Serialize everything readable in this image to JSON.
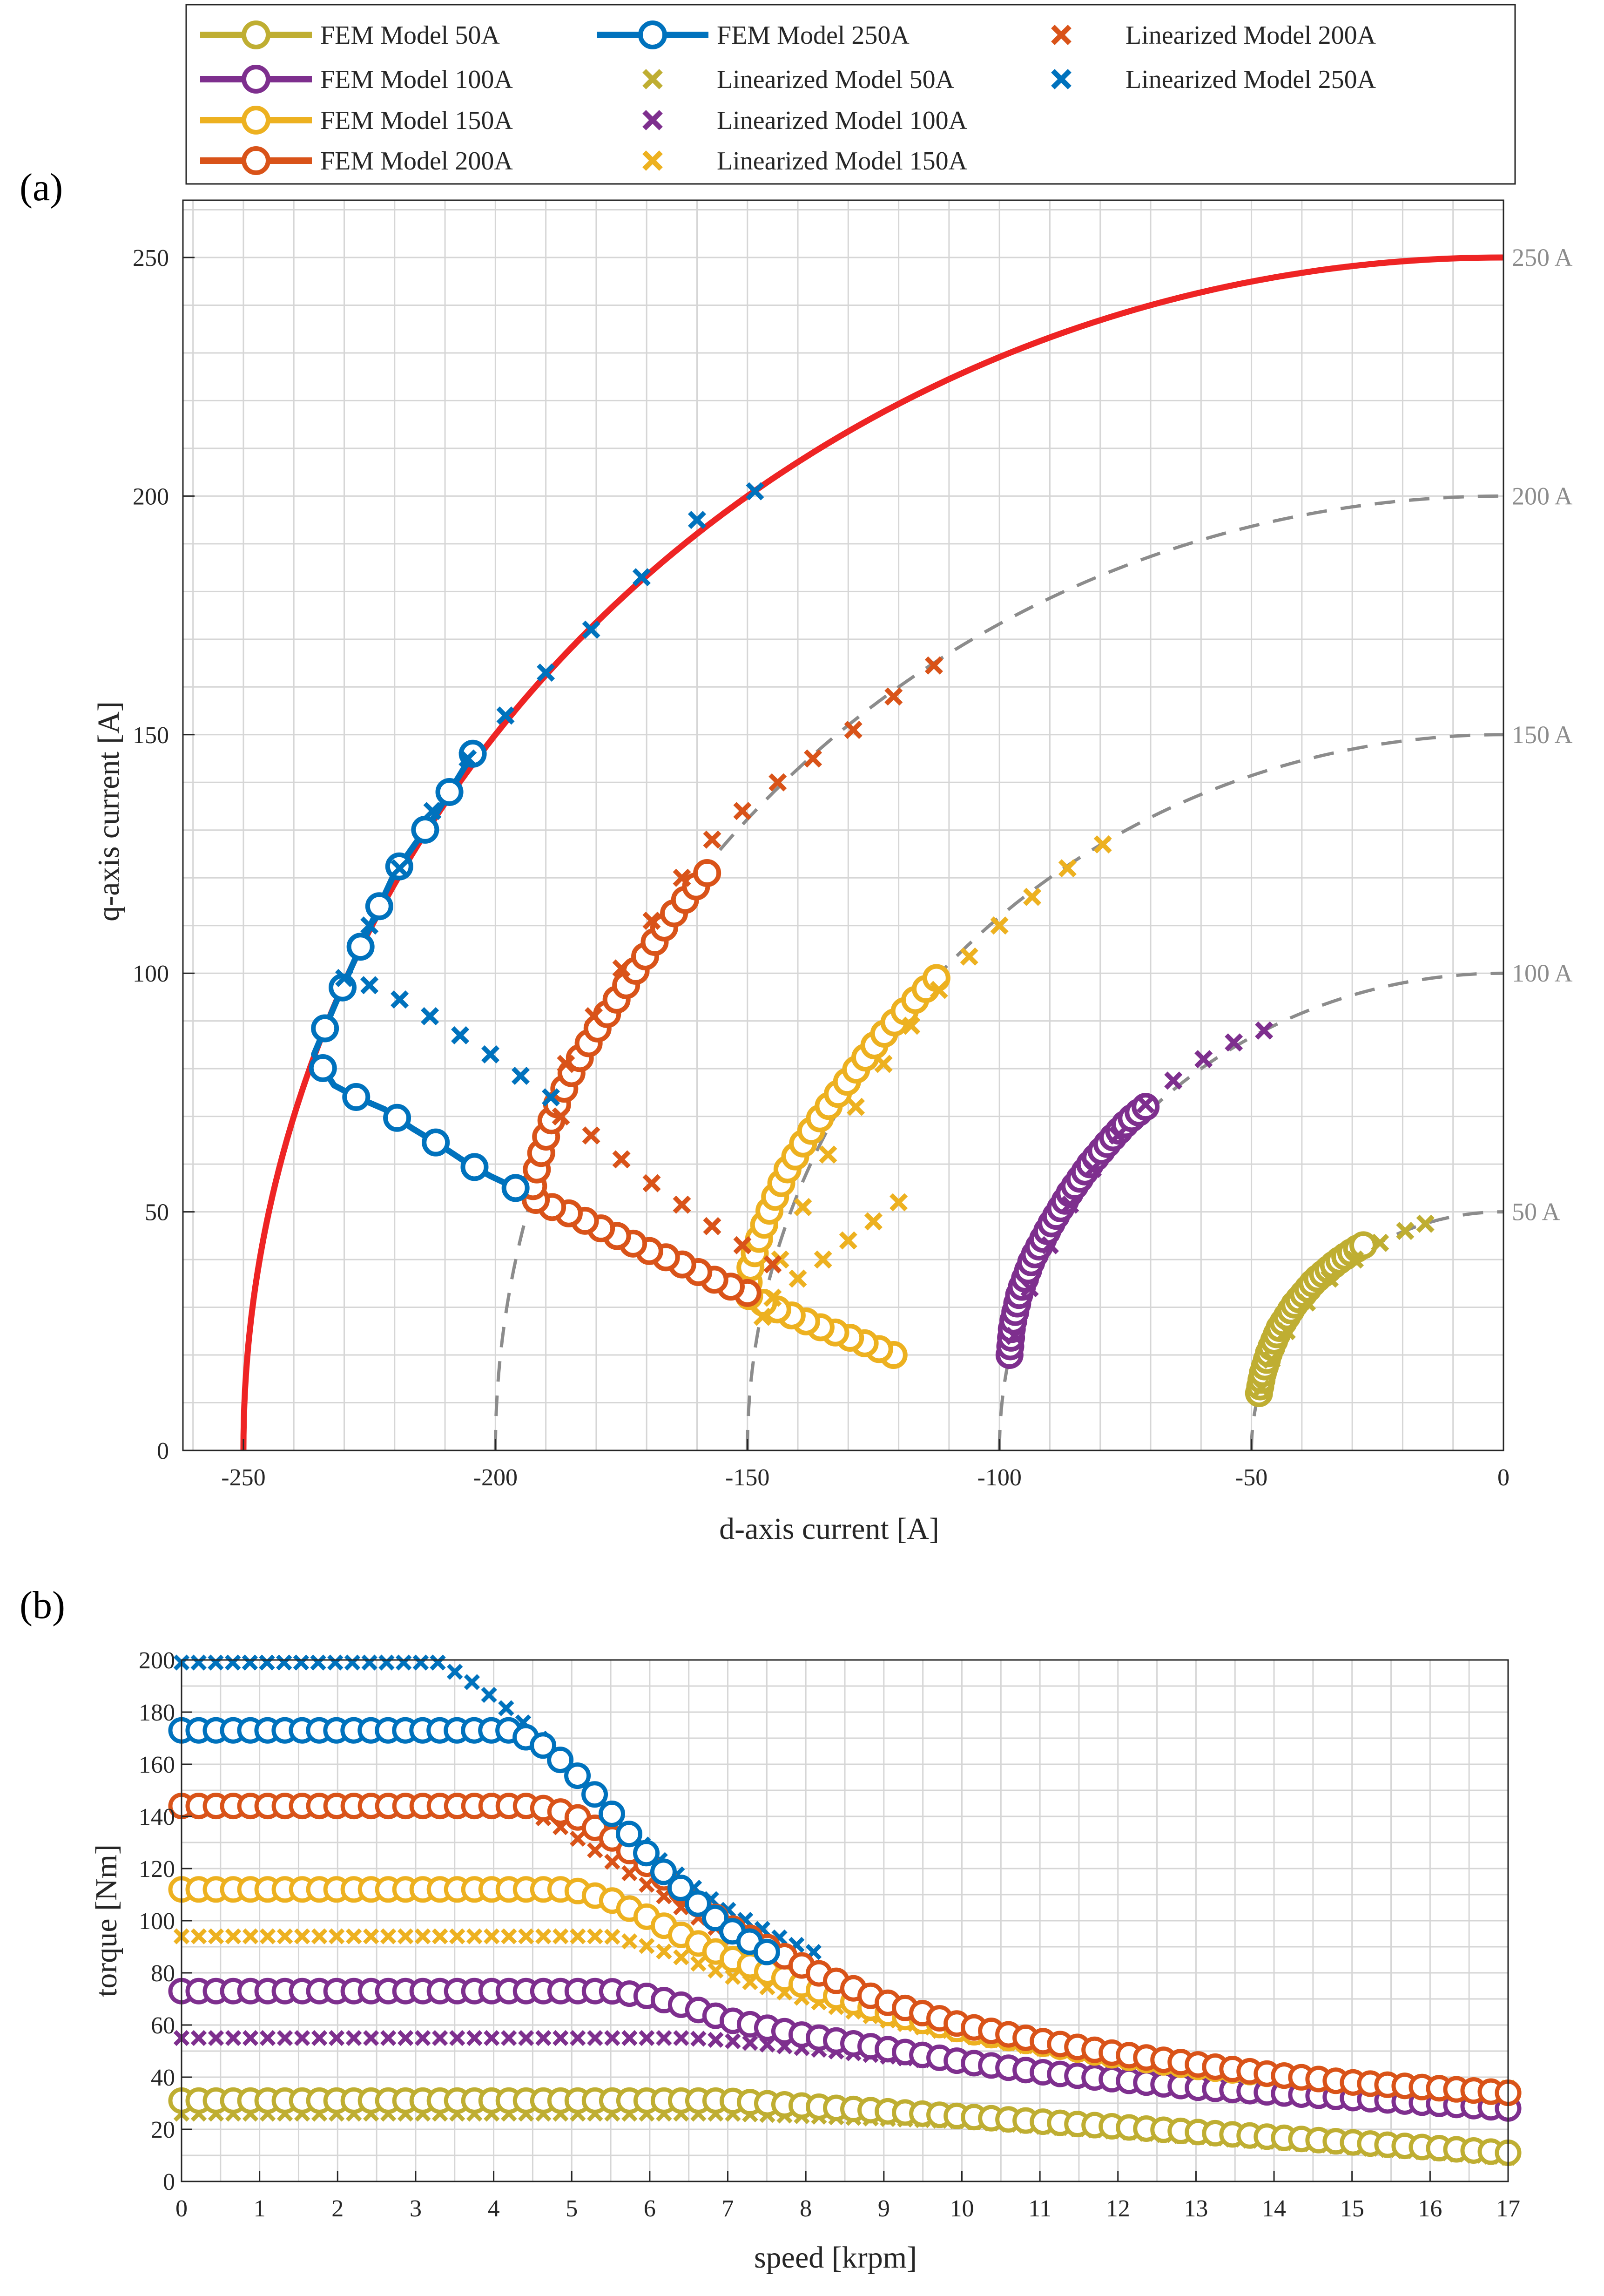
{
  "colors": {
    "fem50": "#bfae32",
    "fem100": "#7e2f8e",
    "fem150": "#edb120",
    "fem200": "#d95319",
    "fem250": "#0072bd",
    "limit": "#ee2424",
    "arc": "#8c8c8c"
  },
  "legend": {
    "entries": [
      {
        "key": "fem50",
        "label": "FEM Model 50A",
        "marker": "o"
      },
      {
        "key": "fem100",
        "label": "FEM Model 100A",
        "marker": "o"
      },
      {
        "key": "fem150",
        "label": "FEM Model 150A",
        "marker": "o"
      },
      {
        "key": "fem200",
        "label": "FEM Model 200A",
        "marker": "o"
      },
      {
        "key": "fem250",
        "label": "FEM Model 250A",
        "marker": "o"
      },
      {
        "key": "fem50",
        "label": "Linearized Model 50A",
        "marker": "x"
      },
      {
        "key": "fem100",
        "label": "Linearized Model 100A",
        "marker": "x"
      },
      {
        "key": "fem150",
        "label": "Linearized Model 150A",
        "marker": "x"
      },
      {
        "key": "fem200",
        "label": "Linearized Model 200A",
        "marker": "x"
      },
      {
        "key": "fem250",
        "label": "Linearized Model 250A",
        "marker": "x"
      }
    ]
  },
  "chart_data": [
    {
      "panel_label": "(a)",
      "type": "line",
      "xlabel": "d-axis current [A]",
      "ylabel": "q-axis current [A]",
      "xlim": [
        -262,
        0
      ],
      "ylim": [
        0,
        262
      ],
      "xticks": [
        -250,
        -200,
        -150,
        -100,
        -50,
        0
      ],
      "xtick_labels": [
        "-250",
        "-200",
        "-150",
        "-100",
        "-50",
        "0"
      ],
      "yticks": [
        0,
        50,
        100,
        150,
        200,
        250
      ],
      "ytick_labels": [
        "0",
        "50",
        "100",
        "150",
        "200",
        "250"
      ],
      "current_limit_circles": [
        {
          "radius": 250,
          "label": "250 A",
          "style": "solid-red"
        },
        {
          "radius": 200,
          "label": "200 A",
          "style": "dashed-gray"
        },
        {
          "radius": 150,
          "label": "150 A",
          "style": "dashed-gray"
        },
        {
          "radius": 100,
          "label": "100 A",
          "style": "dashed-gray"
        },
        {
          "radius": 50,
          "label": "50 A",
          "style": "dashed-gray"
        }
      ],
      "fem_series": [
        {
          "name": "FEM Model 50A",
          "key": "fem50",
          "x": [
            -48.5,
            -47.8,
            -46.5,
            -44.5,
            -41.5,
            -37.5,
            -33.0,
            -29.5,
            -27.8
          ],
          "y": [
            12.0,
            16.0,
            20.5,
            25.5,
            30.5,
            35.5,
            39.5,
            42.0,
            43.0
          ]
        },
        {
          "name": "FEM Model 100A",
          "key": "fem100",
          "x": [
            -98.0,
            -97.5,
            -96.0,
            -93.5,
            -90.0,
            -86.0,
            -82.0,
            -78.0,
            -74.5,
            -71.0
          ],
          "y": [
            20.0,
            26.0,
            33.0,
            40.0,
            47.0,
            54.0,
            60.0,
            65.0,
            69.0,
            72.0
          ]
        },
        {
          "name": "FEM Model 150A",
          "key": "fem150",
          "x": [
            -121.0,
            -128.0,
            -136.0,
            -144.0,
            -150.0,
            -149.5,
            -147.5,
            -145.0,
            -142.0,
            -138.0,
            -134.0,
            -129.0,
            -124.0,
            -118.0,
            -112.5
          ],
          "y": [
            20.0,
            23.0,
            26.0,
            29.5,
            32.5,
            38.0,
            45.0,
            52.0,
            59.0,
            66.0,
            72.0,
            79.0,
            86.0,
            93.0,
            99.0
          ]
        },
        {
          "name": "FEM Model 200A",
          "key": "fem200",
          "x": [
            -150.0,
            -155.0,
            -160.0,
            -165.0,
            -170.0,
            -175.0,
            -180.0,
            -185.0,
            -190.0,
            -193.0,
            -192.0,
            -190.5,
            -188.0,
            -184.5,
            -180.0,
            -175.0,
            -170.0,
            -165.0,
            -158.0
          ],
          "y": [
            33.0,
            35.0,
            37.5,
            40.0,
            42.0,
            44.5,
            47.0,
            49.5,
            51.5,
            53.0,
            58.0,
            64.0,
            72.0,
            80.0,
            88.0,
            96.0,
            104.0,
            112.0,
            121.0
          ]
        },
        {
          "name": "FEM Model 250A",
          "key": "fem250",
          "x": [
            -196.0,
            -201.0,
            -206.0,
            -211.0,
            -216.5,
            -222.0,
            -227.5,
            -232.0,
            -236.0,
            -232.0,
            -227.0,
            -220.0,
            -212.0,
            -204.5
          ],
          "y": [
            55.0,
            57.5,
            60.5,
            64.0,
            67.5,
            71.5,
            74.0,
            76.5,
            83.0,
            93.0,
            105.0,
            121.0,
            133.0,
            146.0
          ]
        }
      ],
      "linearized_series": [
        {
          "name": "Linearized Model 50A",
          "key": "fem50",
          "x": [
            -48.0,
            -46.0,
            -43.0,
            -39.0,
            -34.5,
            -29.5,
            -24.5,
            -19.5,
            -15.5
          ],
          "y": [
            13.0,
            19.0,
            25.0,
            31.0,
            36.0,
            40.0,
            43.5,
            46.0,
            47.5
          ]
        },
        {
          "name": "Linearized Model 100A",
          "key": "fem100",
          "x": [
            -97.0,
            -94.0,
            -90.0,
            -86.0,
            -81.5,
            -76.5,
            -71.0,
            -65.5,
            -59.5,
            -53.5,
            -47.5
          ],
          "y": [
            24.0,
            34.0,
            43.0,
            51.5,
            59.0,
            66.0,
            72.5,
            77.5,
            82.0,
            85.5,
            88.0
          ]
        },
        {
          "name": "Linearized Model 150A",
          "key": "fem150",
          "x": [
            -147.0,
            -143.5,
            -139.0,
            -134.0,
            -128.5,
            -123.0,
            -117.5,
            -112.0,
            -106.0,
            -100.0,
            -93.5,
            -86.5,
            -79.5,
            -145.0,
            -140.0,
            -135.0,
            -130.0,
            -125.0,
            -120.0
          ],
          "y": [
            28.0,
            40.0,
            51.0,
            62.0,
            72.0,
            81.0,
            89.0,
            96.5,
            103.5,
            110.0,
            116.0,
            122.0,
            127.0,
            32.0,
            36.0,
            40.0,
            44.0,
            48.0,
            52.0
          ]
        },
        {
          "name": "Linearized Model 200A",
          "key": "fem200",
          "x": [
            -187.0,
            -181.0,
            -175.0,
            -169.0,
            -163.0,
            -157.0,
            -151.0,
            -145.0,
            -186.0,
            -180.5,
            -175.0,
            -169.0,
            -163.0,
            -157.0,
            -151.0,
            -144.0,
            -137.0,
            -129.0,
            -121.0,
            -113.0
          ],
          "y": [
            70.0,
            66.0,
            61.0,
            56.0,
            51.5,
            47.0,
            43.0,
            39.0,
            81.0,
            91.0,
            101.0,
            111.0,
            120.0,
            128.0,
            134.0,
            140.0,
            145.0,
            151.0,
            158.0,
            164.5
          ]
        },
        {
          "name": "Linearized Model 250A",
          "key": "fem250",
          "x": [
            -189.0,
            -195.0,
            -201.0,
            -207.0,
            -213.0,
            -219.0,
            -225.0,
            -230.0,
            -225.0,
            -219.0,
            -212.5,
            -205.5,
            -198.0,
            -190.0,
            -181.0,
            -171.0,
            -160.0,
            -148.5
          ],
          "y": [
            74.0,
            78.5,
            83.0,
            87.0,
            91.0,
            94.5,
            97.5,
            99.0,
            110.0,
            122.0,
            134.0,
            145.0,
            154.0,
            163.0,
            172.0,
            183.0,
            195.0,
            201.0
          ]
        }
      ]
    },
    {
      "panel_label": "(b)",
      "type": "line",
      "xlabel": "speed [krpm]",
      "ylabel": "torque [Nm]",
      "xlim": [
        0,
        17
      ],
      "ylim": [
        0,
        200
      ],
      "xticks": [
        0,
        1,
        2,
        3,
        4,
        5,
        6,
        7,
        8,
        9,
        10,
        11,
        12,
        13,
        14,
        15,
        16,
        17
      ],
      "xtick_labels": [
        "0",
        "1",
        "2",
        "3",
        "4",
        "5",
        "6",
        "7",
        "8",
        "9",
        "10",
        "11",
        "12",
        "13",
        "14",
        "15",
        "16",
        "17"
      ],
      "yticks": [
        0,
        20,
        40,
        60,
        80,
        100,
        120,
        140,
        160,
        180,
        200
      ],
      "ytick_labels": [
        "0",
        "20",
        "40",
        "60",
        "80",
        "100",
        "120",
        "140",
        "160",
        "180",
        "200"
      ],
      "fem_series": [
        {
          "name": "FEM Model 50A",
          "key": "fem50",
          "x": [
            0,
            7,
            8,
            9,
            10,
            11,
            12,
            13,
            14,
            15,
            16,
            17
          ],
          "y": [
            31,
            31,
            29,
            27,
            25,
            23,
            21,
            19,
            17,
            15,
            13,
            11
          ]
        },
        {
          "name": "FEM Model 100A",
          "key": "fem100",
          "x": [
            0,
            5.5,
            6,
            6.5,
            7,
            8,
            9,
            10,
            11,
            12,
            13,
            14,
            15,
            16,
            17
          ],
          "y": [
            73,
            73,
            71,
            67,
            62,
            56,
            51,
            46,
            42,
            39,
            36,
            34,
            32,
            30,
            28
          ]
        },
        {
          "name": "FEM Model 150A",
          "key": "fem150",
          "x": [
            0,
            5.0,
            5.5,
            6,
            6.5,
            7,
            8,
            9,
            10,
            11,
            12,
            13,
            14,
            15,
            16,
            17
          ],
          "y": [
            112,
            112,
            108,
            101,
            93,
            86,
            75,
            65,
            58,
            53,
            48,
            44,
            41,
            38,
            36,
            34
          ]
        },
        {
          "name": "FEM Model 200A",
          "key": "fem200",
          "x": [
            0,
            4.5,
            5.0,
            5.5,
            6,
            6.5,
            7,
            8,
            9,
            10,
            11,
            12,
            13,
            14,
            15,
            16,
            17
          ],
          "y": [
            144,
            144,
            141,
            132,
            121,
            109,
            98,
            82,
            69,
            60,
            54,
            49,
            45,
            41,
            38,
            36,
            34
          ]
        },
        {
          "name": "FEM Model 250A",
          "key": "fem250",
          "x": [
            0,
            4.2,
            4.6,
            5.0,
            5.4,
            5.8,
            6.2,
            6.6,
            7.0,
            7.5
          ],
          "y": [
            173,
            173,
            168,
            158,
            145,
            131,
            118,
            107,
            97,
            88
          ]
        }
      ],
      "linearized_series": [
        {
          "name": "Linearized Model 50A",
          "key": "fem50",
          "x": [
            0,
            7,
            8,
            9,
            10,
            11,
            12,
            13,
            14,
            15,
            16,
            17
          ],
          "y": [
            26,
            26,
            25,
            24,
            23,
            21,
            19,
            17,
            15,
            13,
            11,
            9
          ]
        },
        {
          "name": "Linearized Model 100A",
          "key": "fem100",
          "x": [
            0,
            6.5,
            7,
            8,
            9,
            10,
            11,
            12,
            13,
            14,
            15,
            16,
            17
          ],
          "y": [
            55,
            55,
            54,
            51,
            48,
            45,
            42,
            39,
            37,
            35,
            33,
            31,
            29
          ]
        },
        {
          "name": "Linearized Model 150A",
          "key": "fem150",
          "x": [
            0,
            5.5,
            6,
            6.5,
            7,
            8,
            9,
            10,
            11,
            12,
            13,
            14,
            15,
            16,
            17
          ],
          "y": [
            94,
            94,
            90,
            85,
            79,
            70,
            62,
            56,
            51,
            47,
            44,
            41,
            39,
            37,
            36
          ]
        },
        {
          "name": "Linearized Model 200A",
          "key": "fem200",
          "x": [
            0,
            4.3,
            4.8,
            5.3,
            5.8,
            6.3,
            6.8,
            7.3,
            8,
            9,
            10,
            11,
            12,
            13,
            14,
            15,
            16,
            17
          ],
          "y": [
            144,
            144,
            137,
            127,
            117,
            107,
            98,
            90,
            80,
            69,
            61,
            55,
            50,
            46,
            42,
            39,
            37,
            35
          ]
        },
        {
          "name": "Linearized Model 250A",
          "key": "fem250",
          "x": [
            0,
            3.3,
            3.7,
            4.1,
            4.5,
            4.9,
            5.3,
            5.7,
            6.1,
            6.5,
            6.9,
            7.3,
            7.7,
            8.1
          ],
          "y": [
            199,
            199,
            192,
            183,
            173,
            160,
            147,
            135,
            124,
            114,
            106,
            99,
            93,
            88
          ]
        }
      ]
    }
  ]
}
